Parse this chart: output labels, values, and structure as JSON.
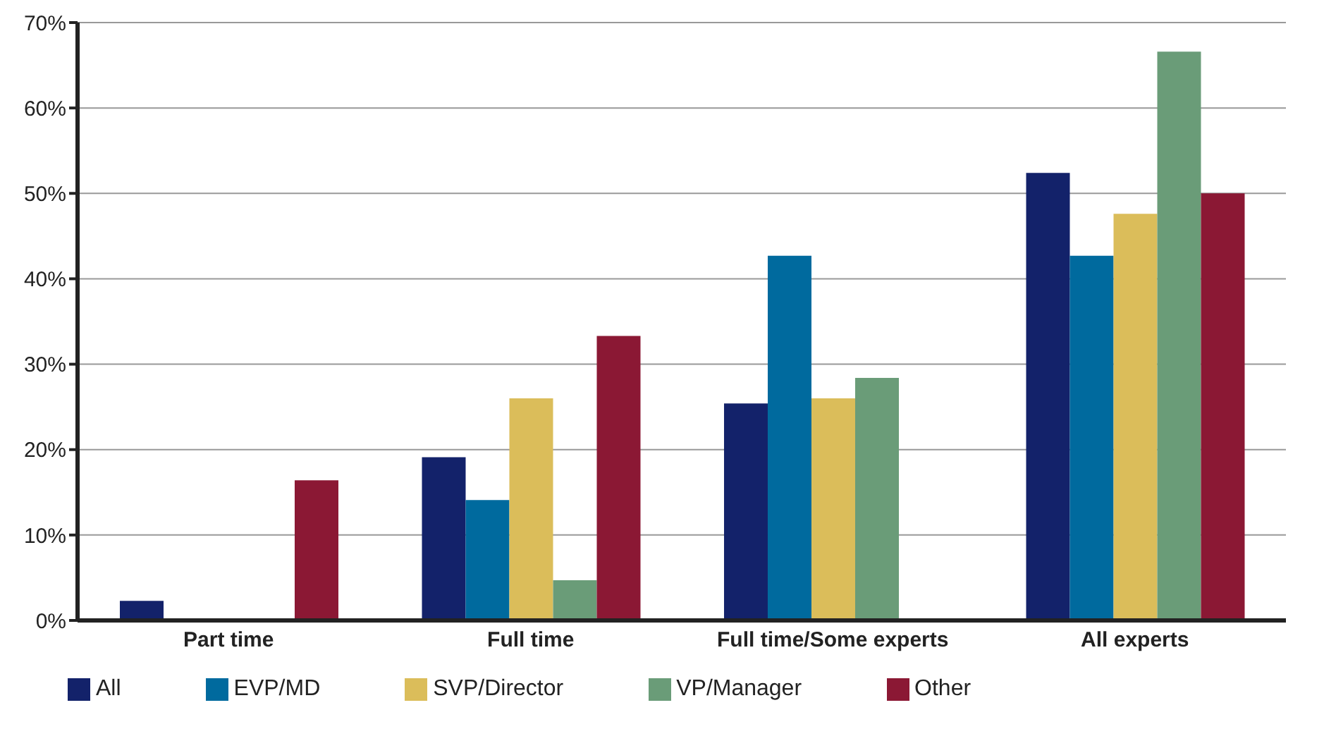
{
  "chart_data": {
    "type": "bar",
    "categories": [
      "Part time",
      "Full time",
      "Full time/Some experts",
      "All experts"
    ],
    "series": [
      {
        "name": "All",
        "color": "#13226a",
        "values": [
          2.3,
          19.1,
          25.4,
          52.4
        ]
      },
      {
        "name": "EVP/MD",
        "color": "#006a9e",
        "values": [
          0,
          14.1,
          42.7,
          42.7
        ]
      },
      {
        "name": "SVP/Director",
        "color": "#dbbd5a",
        "values": [
          0,
          26,
          26,
          47.6
        ]
      },
      {
        "name": "VP/Manager",
        "color": "#6a9c78",
        "values": [
          0,
          4.7,
          28.4,
          66.6
        ]
      },
      {
        "name": "Other",
        "color": "#8b1834",
        "values": [
          16.4,
          33.3,
          0,
          50
        ]
      }
    ],
    "ylim": [
      0,
      70
    ],
    "yticks": [
      {
        "value": 0,
        "label": "0%"
      },
      {
        "value": 10,
        "label": "10%"
      },
      {
        "value": 20,
        "label": "20%"
      },
      {
        "value": 30,
        "label": "30%"
      },
      {
        "value": 40,
        "label": "40%"
      },
      {
        "value": 50,
        "label": "50%"
      },
      {
        "value": 60,
        "label": "60%"
      },
      {
        "value": 70,
        "label": "70%"
      }
    ],
    "grid": "y",
    "legend": "bottom left"
  }
}
